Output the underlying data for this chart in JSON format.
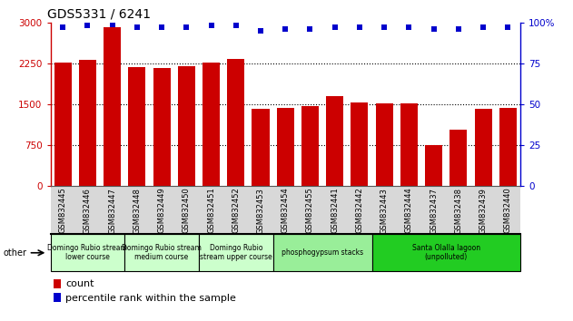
{
  "title": "GDS5331 / 6241",
  "categories": [
    "GSM832445",
    "GSM832446",
    "GSM832447",
    "GSM832448",
    "GSM832449",
    "GSM832450",
    "GSM832451",
    "GSM832452",
    "GSM832453",
    "GSM832454",
    "GSM832455",
    "GSM832441",
    "GSM832442",
    "GSM832443",
    "GSM832444",
    "GSM832437",
    "GSM832438",
    "GSM832439",
    "GSM832440"
  ],
  "counts": [
    2260,
    2320,
    2920,
    2180,
    2170,
    2200,
    2270,
    2330,
    1420,
    1430,
    1470,
    1650,
    1530,
    1510,
    1510,
    760,
    1040,
    1410,
    1430
  ],
  "percentiles": [
    97,
    98,
    99,
    97,
    97,
    97,
    98,
    98,
    95,
    96,
    96,
    97,
    97,
    97,
    97,
    96,
    96,
    97,
    97
  ],
  "bar_color": "#cc0000",
  "dot_color": "#0000cc",
  "ylim_left": [
    0,
    3000
  ],
  "ylim_right": [
    0,
    100
  ],
  "yticks_left": [
    0,
    750,
    1500,
    2250,
    3000
  ],
  "yticks_right": [
    0,
    25,
    50,
    75,
    100
  ],
  "groups": [
    {
      "label": "Domingo Rubio stream\nlower course",
      "start": 0,
      "end": 3,
      "color": "#ccffcc"
    },
    {
      "label": "Domingo Rubio stream\nmedium course",
      "start": 3,
      "end": 6,
      "color": "#ccffcc"
    },
    {
      "label": "Domingo Rubio\nstream upper course",
      "start": 6,
      "end": 9,
      "color": "#ccffcc"
    },
    {
      "label": "phosphogypsum stacks",
      "start": 9,
      "end": 13,
      "color": "#99ee99"
    },
    {
      "label": "Santa Olalla lagoon\n(unpolluted)",
      "start": 13,
      "end": 19,
      "color": "#22cc22"
    }
  ],
  "legend_count_label": "count",
  "legend_pct_label": "percentile rank within the sample",
  "other_label": "other",
  "left_axis_color": "#cc0000",
  "right_axis_color": "#0000cc",
  "group_border_color": "#000000",
  "plot_bg_color": "#ffffff",
  "xticklabel_bg": "#d8d8d8"
}
